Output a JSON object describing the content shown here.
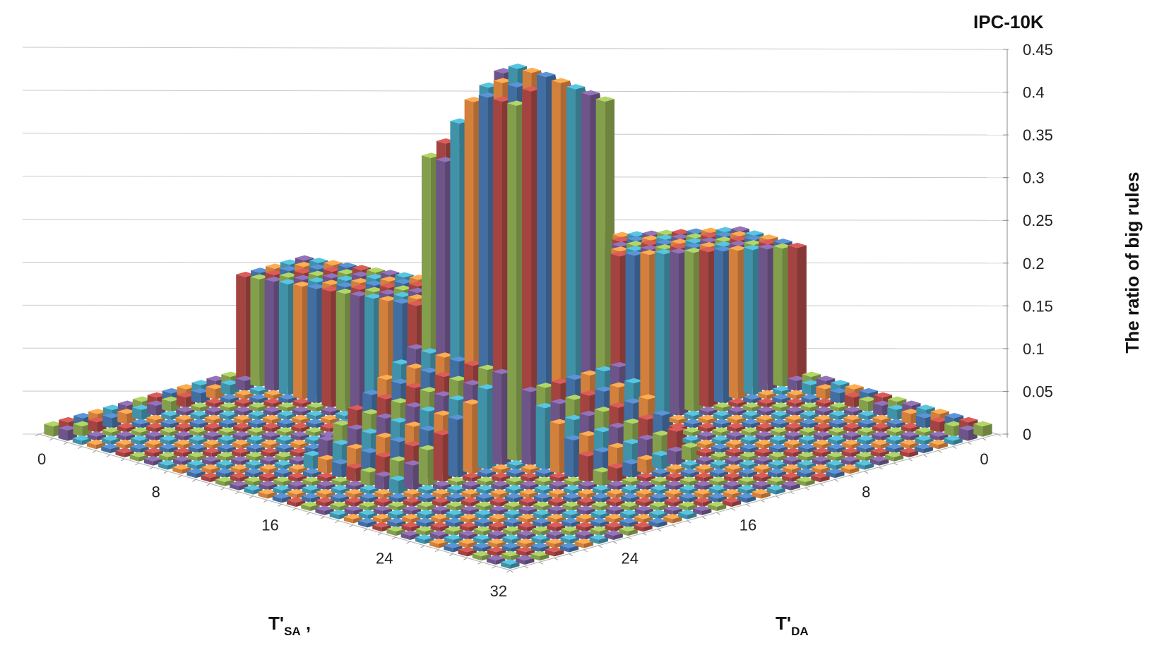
{
  "chart_data": {
    "type": "bar3d",
    "title": "IPC-10K",
    "zlabel": "The ratio of big rules",
    "zlim": [
      0,
      0.45
    ],
    "z_ticks": [
      "0",
      "0.05",
      "0.1",
      "0.15",
      "0.2",
      "0.25",
      "0.3",
      "0.35",
      "0.4",
      "0.45"
    ],
    "x_axis": {
      "label_main": "T'",
      "label_sub": "SA",
      "label_suffix": " ,",
      "ticks": [
        "0",
        "8",
        "16",
        "24",
        "32"
      ],
      "range": [
        0,
        32
      ]
    },
    "y_axis": {
      "label_main": "T'",
      "label_sub": "DA",
      "ticks": [
        "0",
        "8",
        "16",
        "24"
      ],
      "range": [
        0,
        32
      ]
    },
    "series_colors": [
      "#4f81bd",
      "#c0504d",
      "#9bbb59",
      "#8064a2",
      "#4bacc6",
      "#f79646"
    ],
    "model": {
      "description_of_values": "z(i,j): ratio of big rules at T'SA = i, T'DA = j (estimated)",
      "peak": 0.44,
      "sa_ridge_value": 0.15,
      "da_ridge_value": 0.21,
      "sa_edge_value": 0.04,
      "da_edge_value": 0.03,
      "floor_value": 0.005
    }
  }
}
